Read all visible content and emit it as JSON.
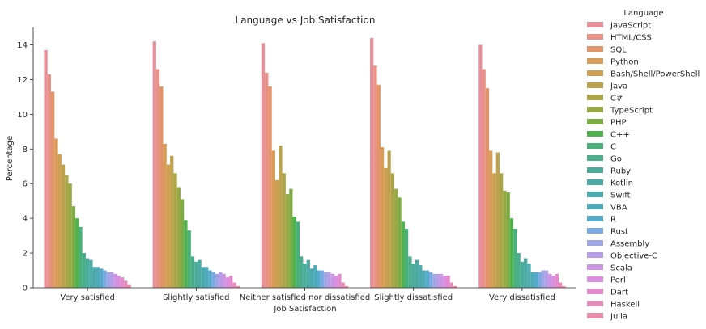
{
  "chart_data": {
    "type": "bar",
    "title": "Language vs Job Satisfaction",
    "xlabel": "Job Satisfaction",
    "ylabel": "Percentage",
    "ylim": [
      0,
      15
    ],
    "yticks": [
      0,
      2,
      4,
      6,
      8,
      10,
      12,
      14
    ],
    "grid": false,
    "legend_title": "Language",
    "legend_position": "outside-right",
    "categories": [
      "Very satisfied",
      "Slightly satisfied",
      "Neither satisfied nor dissatisfied",
      "Slightly dissatisfied",
      "Very dissatisfied"
    ],
    "series": [
      {
        "name": "JavaScript",
        "color": "#e8909a",
        "values": [
          13.7,
          14.2,
          14.1,
          14.4,
          14.0
        ]
      },
      {
        "name": "HTML/CSS",
        "color": "#e99184",
        "values": [
          12.3,
          12.6,
          12.4,
          12.8,
          12.6
        ]
      },
      {
        "name": "SQL",
        "color": "#e29367",
        "values": [
          11.3,
          11.6,
          11.6,
          11.7,
          11.5
        ]
      },
      {
        "name": "Python",
        "color": "#d99b58",
        "values": [
          8.6,
          8.3,
          7.9,
          8.1,
          7.9
        ]
      },
      {
        "name": "Bash/Shell/PowerShell",
        "color": "#cc9f52",
        "values": [
          7.7,
          7.1,
          6.2,
          6.9,
          6.6
        ]
      },
      {
        "name": "Java",
        "color": "#bda24d",
        "values": [
          7.1,
          7.6,
          8.2,
          7.9,
          7.8
        ]
      },
      {
        "name": "C#",
        "color": "#aba548",
        "values": [
          6.5,
          6.6,
          6.6,
          6.6,
          6.6
        ]
      },
      {
        "name": "TypeScript",
        "color": "#97a845",
        "values": [
          6.0,
          5.8,
          5.4,
          5.7,
          5.6
        ]
      },
      {
        "name": "PHP",
        "color": "#7dac44",
        "values": [
          4.7,
          5.1,
          5.7,
          5.2,
          5.5
        ]
      },
      {
        "name": "C++",
        "color": "#4fb24e",
        "values": [
          4.0,
          3.9,
          4.1,
          3.8,
          4.0
        ]
      },
      {
        "name": "C",
        "color": "#4ab07a",
        "values": [
          3.5,
          3.3,
          3.8,
          3.4,
          3.4
        ]
      },
      {
        "name": "Go",
        "color": "#4aae8c",
        "values": [
          2.0,
          1.8,
          1.8,
          1.8,
          2.0
        ]
      },
      {
        "name": "Ruby",
        "color": "#4aac99",
        "values": [
          1.7,
          1.5,
          1.4,
          1.4,
          1.5
        ]
      },
      {
        "name": "Kotlin",
        "color": "#4baba4",
        "values": [
          1.6,
          1.6,
          1.6,
          1.6,
          1.7
        ]
      },
      {
        "name": "Swift",
        "color": "#4caaae",
        "values": [
          1.2,
          1.2,
          1.1,
          1.3,
          1.4
        ]
      },
      {
        "name": "VBA",
        "color": "#4eaab8",
        "values": [
          1.2,
          1.2,
          1.3,
          1.0,
          0.9
        ]
      },
      {
        "name": "R",
        "color": "#55aacc",
        "values": [
          1.1,
          1.0,
          1.0,
          1.0,
          0.9
        ]
      },
      {
        "name": "Rust",
        "color": "#7aaae2",
        "values": [
          1.0,
          0.9,
          1.0,
          0.9,
          0.9
        ]
      },
      {
        "name": "Assembly",
        "color": "#9fa6e5",
        "values": [
          0.9,
          0.8,
          0.9,
          0.8,
          1.0
        ]
      },
      {
        "name": "Objective-C",
        "color": "#b69de8",
        "values": [
          0.9,
          0.9,
          0.9,
          0.8,
          1.0
        ]
      },
      {
        "name": "Scala",
        "color": "#cc94e5",
        "values": [
          0.8,
          0.8,
          0.8,
          0.8,
          0.8
        ]
      },
      {
        "name": "Perl",
        "color": "#dc8ee0",
        "values": [
          0.7,
          0.6,
          0.7,
          0.7,
          0.7
        ]
      },
      {
        "name": "Dart",
        "color": "#e48bcd",
        "values": [
          0.6,
          0.7,
          0.8,
          0.7,
          0.8
        ]
      },
      {
        "name": "Haskell",
        "color": "#e68cba",
        "values": [
          0.4,
          0.3,
          0.3,
          0.3,
          0.3
        ]
      },
      {
        "name": "Julia",
        "color": "#e78ca9",
        "values": [
          0.2,
          0.1,
          0.1,
          0.1,
          0.1
        ]
      }
    ]
  }
}
